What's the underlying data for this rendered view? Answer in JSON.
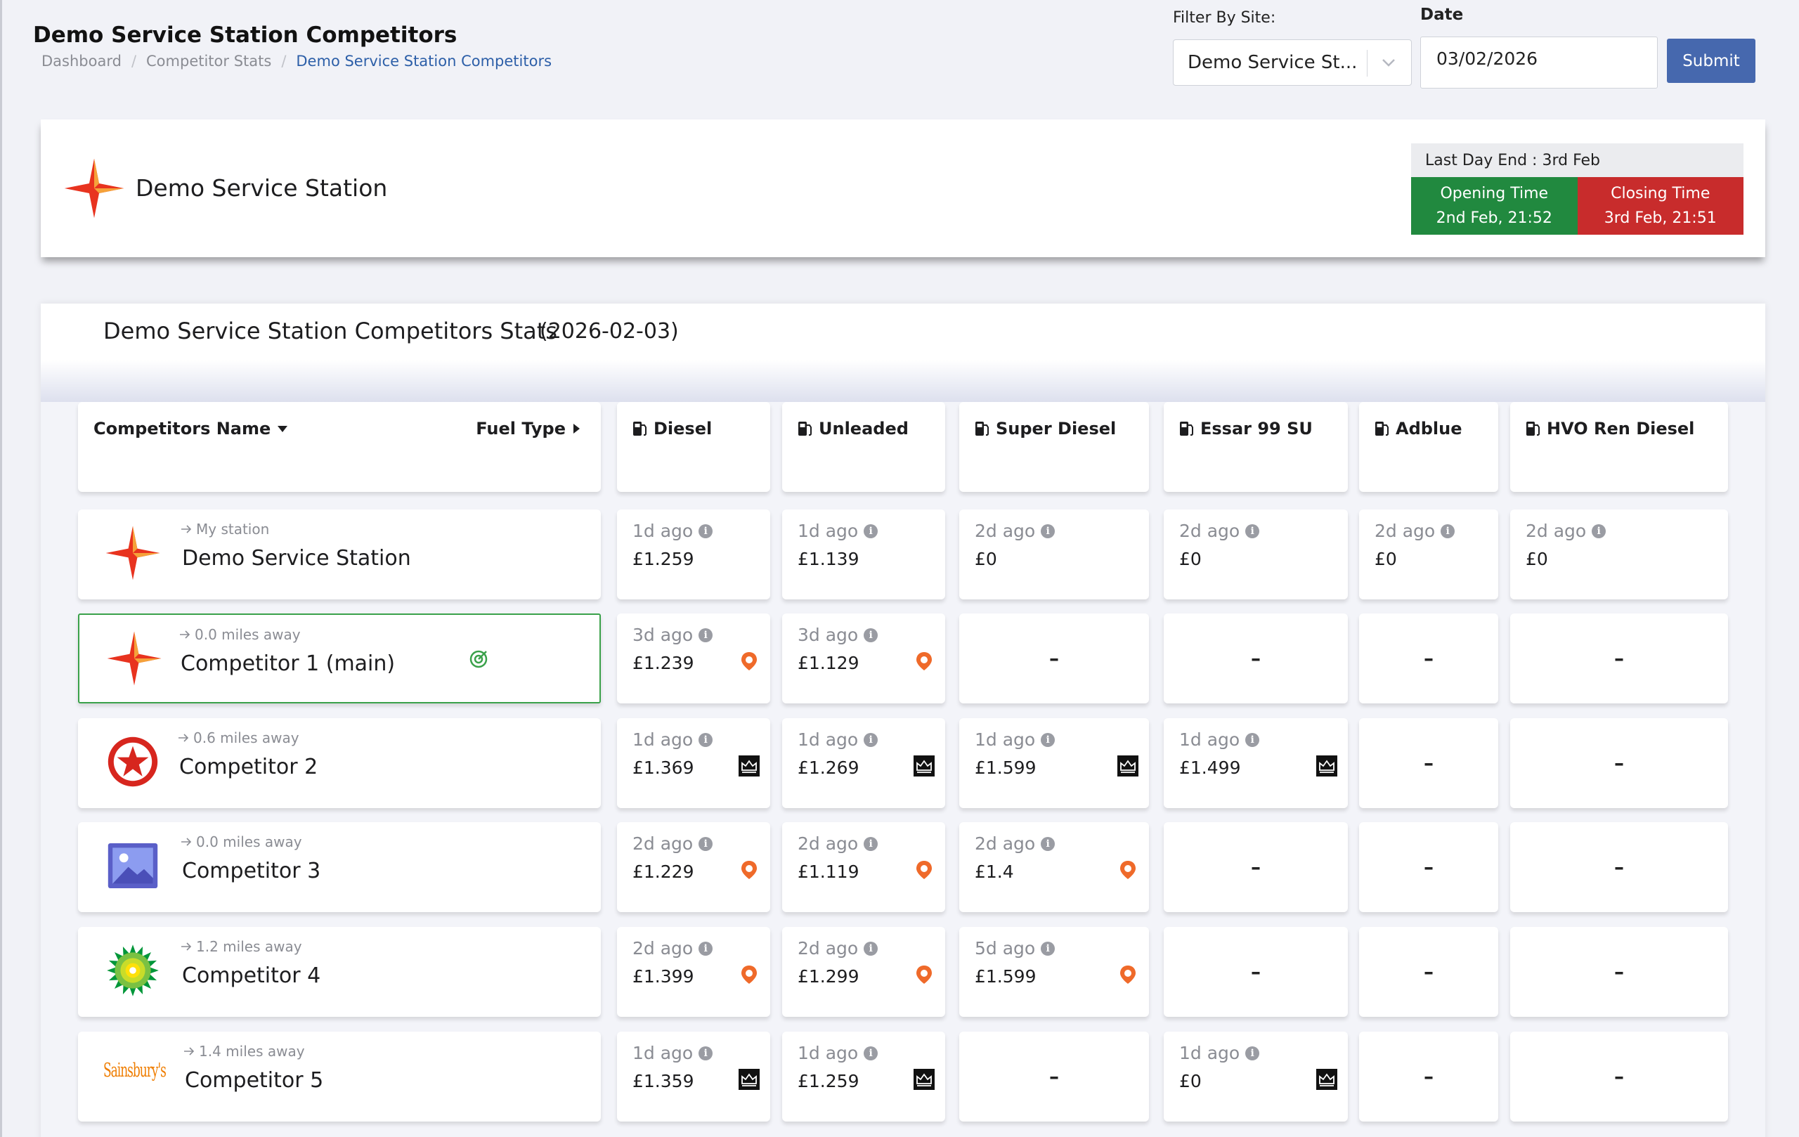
{
  "header": {
    "title": "Demo Service Station Competitors",
    "breadcrumb": [
      "Dashboard",
      "Competitor Stats",
      "Demo Service Station Competitors"
    ],
    "filter_label": "Filter By Site:",
    "site_value": "Demo Service St...",
    "date_label": "Date",
    "date_value": "03/02/2026",
    "submit_label": "Submit"
  },
  "station": {
    "name": "Demo Service Station",
    "last_day_end": "Last Day End : 3rd Feb",
    "opening_label": "Opening Time",
    "opening_value": "2nd Feb, 21:52",
    "closing_label": "Closing Time",
    "closing_value": "3rd Feb, 21:51"
  },
  "stats": {
    "title": "Demo Service Station Competitors Stats",
    "date": "(2026-02-03)",
    "name_header": "Competitors Name",
    "fuel_type_header": "Fuel Type",
    "fuels": [
      "Diesel",
      "Unleaded",
      "Super Diesel",
      "Essar 99 SU",
      "Adblue",
      "HVO Ren Diesel"
    ],
    "rows": [
      {
        "sub": "My station",
        "name": "Demo Service Station",
        "logo": "star-logo",
        "prices": [
          {
            "ago": "1d ago",
            "price": "£1.259",
            "src": ""
          },
          {
            "ago": "1d ago",
            "price": "£1.139",
            "src": ""
          },
          {
            "ago": "2d ago",
            "price": "£0",
            "src": ""
          },
          {
            "ago": "2d ago",
            "price": "£0",
            "src": ""
          },
          {
            "ago": "2d ago",
            "price": "£0",
            "src": ""
          },
          {
            "ago": "2d ago",
            "price": "£0",
            "src": ""
          }
        ]
      },
      {
        "sub": "0.0 miles away",
        "name": "Competitor 1 (main)",
        "logo": "star-logo",
        "main": true,
        "prices": [
          {
            "ago": "3d ago",
            "price": "£1.239",
            "src": "pin"
          },
          {
            "ago": "3d ago",
            "price": "£1.129",
            "src": "pin"
          },
          null,
          null,
          null,
          null
        ]
      },
      {
        "sub": "0.6 miles away",
        "name": "Competitor 2",
        "logo": "texaco-logo",
        "prices": [
          {
            "ago": "1d ago",
            "price": "£1.369",
            "src": "crown"
          },
          {
            "ago": "1d ago",
            "price": "£1.269",
            "src": "crown"
          },
          {
            "ago": "1d ago",
            "price": "£1.599",
            "src": "crown"
          },
          {
            "ago": "1d ago",
            "price": "£1.499",
            "src": "crown"
          },
          null,
          null
        ]
      },
      {
        "sub": "0.0 miles away",
        "name": "Competitor 3",
        "logo": "image-placeholder-logo",
        "prices": [
          {
            "ago": "2d ago",
            "price": "£1.229",
            "src": "pin"
          },
          {
            "ago": "2d ago",
            "price": "£1.119",
            "src": "pin"
          },
          {
            "ago": "2d ago",
            "price": "£1.4",
            "src": "pin"
          },
          null,
          null,
          null
        ]
      },
      {
        "sub": "1.2 miles away",
        "name": "Competitor 4",
        "logo": "bp-logo",
        "prices": [
          {
            "ago": "2d ago",
            "price": "£1.399",
            "src": "pin"
          },
          {
            "ago": "2d ago",
            "price": "£1.299",
            "src": "pin"
          },
          {
            "ago": "5d ago",
            "price": "£1.599",
            "src": "pin"
          },
          null,
          null,
          null
        ]
      },
      {
        "sub": "1.4 miles away",
        "name": "Competitor 5",
        "logo": "sainsburys-logo",
        "logo_text": "Sainsbury's",
        "prices": [
          {
            "ago": "1d ago",
            "price": "£1.359",
            "src": "crown"
          },
          {
            "ago": "1d ago",
            "price": "£1.259",
            "src": "crown"
          },
          null,
          {
            "ago": "1d ago",
            "price": "£0",
            "src": "crown"
          },
          null,
          null
        ]
      }
    ],
    "empty_mark": "–"
  },
  "colors": {
    "accent": "#4668ae",
    "open": "#21893f",
    "close": "#c82c2c",
    "main_border": "#3aa14a",
    "pin": "#ef6a2a"
  }
}
